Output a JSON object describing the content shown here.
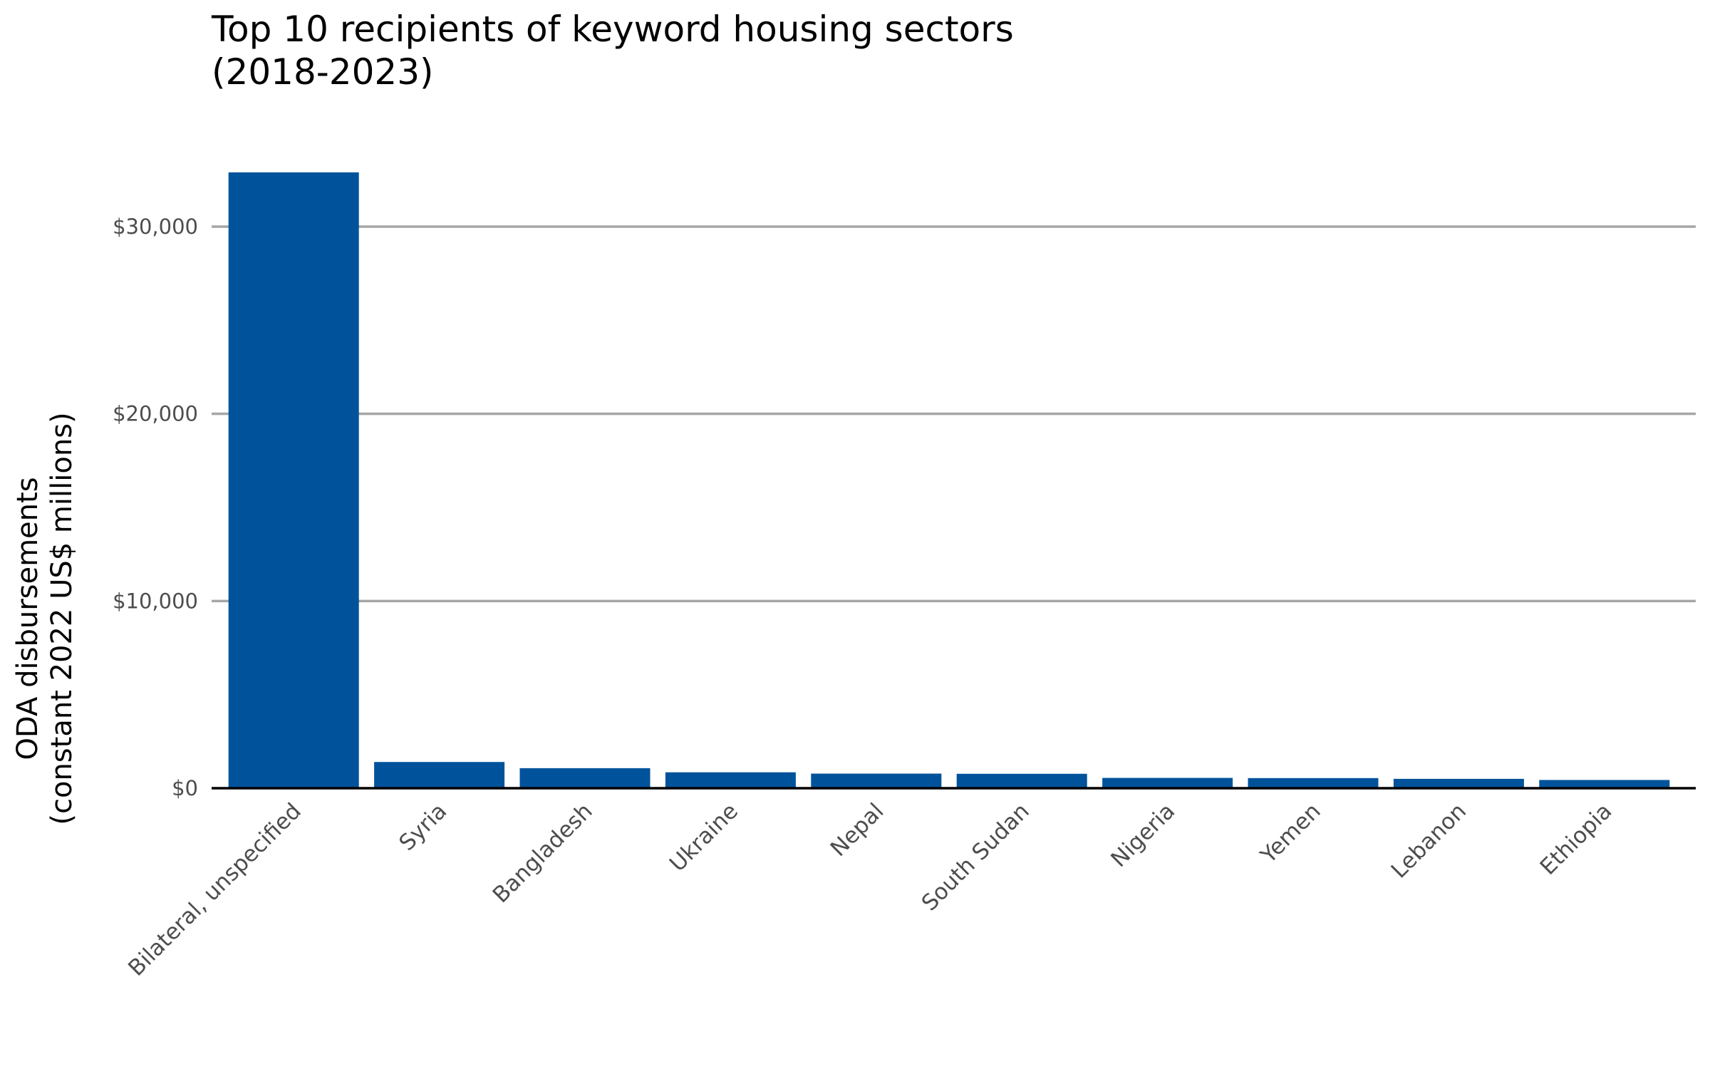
{
  "chart_data": {
    "type": "bar",
    "title": "Top 10 recipients of keyword housing sectors",
    "subtitle": "(2018-2023)",
    "xlabel": "",
    "ylabel": "ODA disbursements",
    "ylabel_line2": "(constant 2022 US$ millions)",
    "categories": [
      "Bilateral, unspecified",
      "Syria",
      "Bangladesh",
      "Ukraine",
      "Nepal",
      "South Sudan",
      "Nigeria",
      "Yemen",
      "Lebanon",
      "Ethiopia"
    ],
    "values": [
      32900,
      1400,
      1070,
      850,
      780,
      770,
      550,
      540,
      500,
      440
    ],
    "ylim": [
      0,
      35000
    ],
    "yticks": [
      0,
      10000,
      20000,
      30000
    ],
    "ytick_labels": [
      "$0",
      "$10,000",
      "$20,000",
      "$30,000"
    ],
    "bar_color": "#00539b",
    "grid": "horizontal",
    "legend": "none"
  }
}
